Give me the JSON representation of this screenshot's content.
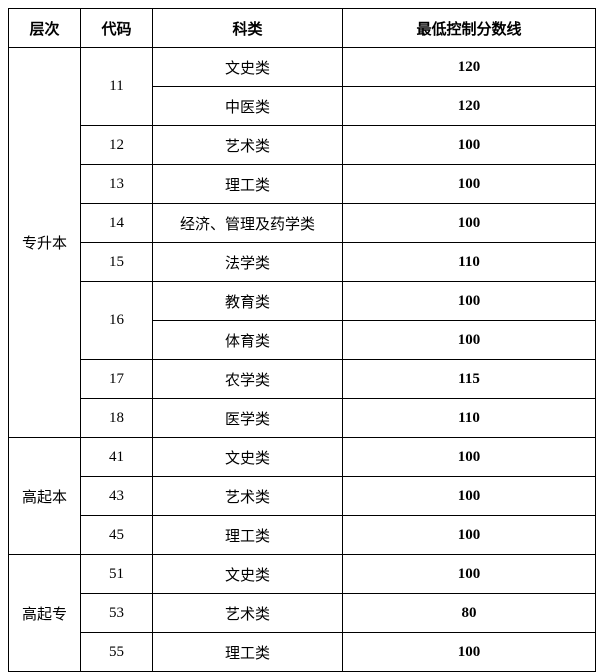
{
  "table": {
    "columns": [
      "层次",
      "代码",
      "科类",
      "最低控制分数线"
    ],
    "levels": [
      {
        "name": "专升本",
        "codes": [
          {
            "code": "11",
            "rows": [
              {
                "cat": "文史类",
                "score": "120"
              },
              {
                "cat": "中医类",
                "score": "120"
              }
            ]
          },
          {
            "code": "12",
            "rows": [
              {
                "cat": "艺术类",
                "score": "100"
              }
            ]
          },
          {
            "code": "13",
            "rows": [
              {
                "cat": "理工类",
                "score": "100"
              }
            ]
          },
          {
            "code": "14",
            "rows": [
              {
                "cat": "经济、管理及药学类",
                "score": "100"
              }
            ]
          },
          {
            "code": "15",
            "rows": [
              {
                "cat": "法学类",
                "score": "110"
              }
            ]
          },
          {
            "code": "16",
            "rows": [
              {
                "cat": "教育类",
                "score": "100"
              },
              {
                "cat": "体育类",
                "score": "100"
              }
            ]
          },
          {
            "code": "17",
            "rows": [
              {
                "cat": "农学类",
                "score": "115"
              }
            ]
          },
          {
            "code": "18",
            "rows": [
              {
                "cat": "医学类",
                "score": "110"
              }
            ]
          }
        ]
      },
      {
        "name": "高起本",
        "codes": [
          {
            "code": "41",
            "rows": [
              {
                "cat": "文史类",
                "score": "100"
              }
            ]
          },
          {
            "code": "43",
            "rows": [
              {
                "cat": "艺术类",
                "score": "100"
              }
            ]
          },
          {
            "code": "45",
            "rows": [
              {
                "cat": "理工类",
                "score": "100"
              }
            ]
          }
        ]
      },
      {
        "name": "高起专",
        "codes": [
          {
            "code": "51",
            "rows": [
              {
                "cat": "文史类",
                "score": "100"
              }
            ]
          },
          {
            "code": "53",
            "rows": [
              {
                "cat": "艺术类",
                "score": "80"
              }
            ]
          },
          {
            "code": "55",
            "rows": [
              {
                "cat": "理工类",
                "score": "100"
              }
            ]
          }
        ]
      }
    ]
  }
}
